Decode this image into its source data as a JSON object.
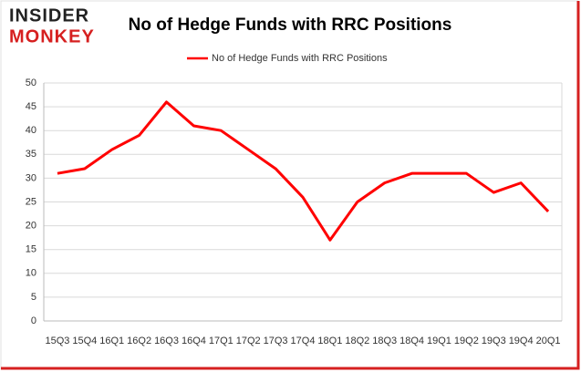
{
  "logo": {
    "top": "INSIDER",
    "bottom": "MONKEY"
  },
  "chart_data": {
    "type": "line",
    "title": "No of Hedge Funds with RRC Positions",
    "categories": [
      "15Q3",
      "15Q4",
      "16Q1",
      "16Q2",
      "16Q3",
      "16Q4",
      "17Q1",
      "17Q2",
      "17Q3",
      "17Q4",
      "18Q1",
      "18Q2",
      "18Q3",
      "18Q4",
      "19Q1",
      "19Q2",
      "19Q3",
      "19Q4",
      "20Q1"
    ],
    "series": [
      {
        "name": "No of Hedge Funds with RRC Positions",
        "color": "#ff0000",
        "values": [
          31,
          32,
          36,
          39,
          46,
          41,
          40,
          36,
          32,
          26,
          17,
          25,
          29,
          31,
          31,
          31,
          27,
          29,
          23
        ]
      }
    ],
    "ylim": [
      0,
      50
    ],
    "yticks": [
      0,
      5,
      10,
      15,
      20,
      25,
      30,
      35,
      40,
      45,
      50
    ],
    "grid": true,
    "legend": "top"
  }
}
